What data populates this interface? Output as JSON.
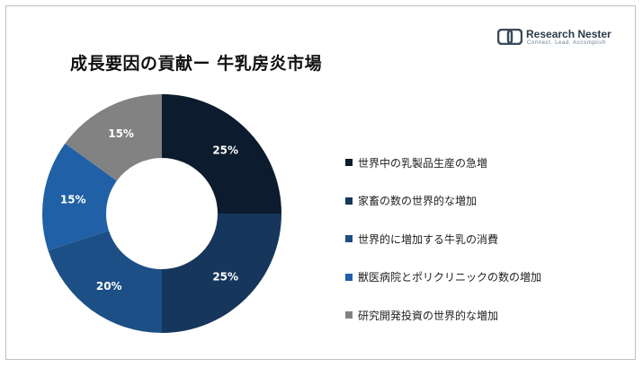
{
  "title": "成長要因の貢献ー 牛乳房炎市場",
  "logo": {
    "name": "Research Nester",
    "tagline": "Connect. Lead. Accomplish"
  },
  "chart_data": {
    "type": "pie",
    "donut": true,
    "legend_position": "right",
    "categories": [
      "世界中の乳製品生産の急増",
      "家畜の数の世界的な増加",
      "世界的に増加する牛乳の消費",
      "獣医病院とポリクリニックの数の増加",
      "研究開発投資の世界的な増加"
    ],
    "values": [
      25,
      25,
      20,
      15,
      15
    ],
    "labels": [
      "25%",
      "25%",
      "20%",
      "15%",
      "15%"
    ],
    "colors": [
      "#0d1b2e",
      "#16365c",
      "#1c4f85",
      "#2060a6",
      "#828282"
    ]
  }
}
